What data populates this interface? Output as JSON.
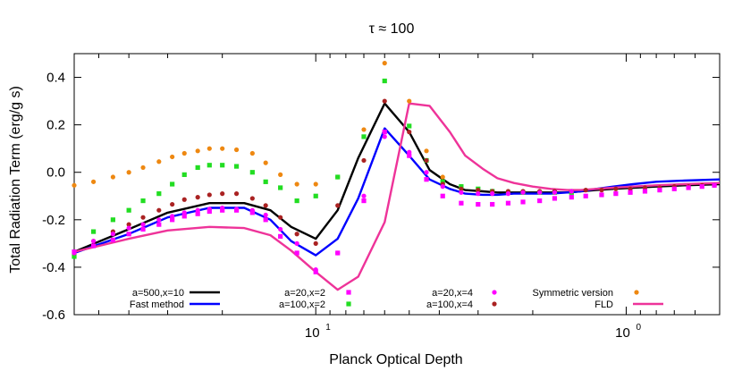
{
  "chart_data": {
    "type": "line",
    "title": "τ ≈ 100",
    "xlabel": "Planck Optical Depth",
    "ylabel": "Total Radiation Term (erg/g s)",
    "x_scale": "log",
    "x_direction": "decreasing",
    "xlim": [
      60,
      0.5
    ],
    "ylim": [
      -0.6,
      0.5
    ],
    "x_ticks": [
      {
        "value": 10,
        "label": "10",
        "sup": "1"
      },
      {
        "value": 1,
        "label": "10",
        "sup": "0"
      }
    ],
    "y_ticks": [
      {
        "value": 0.4,
        "label": "0.4"
      },
      {
        "value": 0.2,
        "label": "0.2"
      },
      {
        "value": 0.0,
        "label": "0.0"
      },
      {
        "value": -0.2,
        "label": "-0.2"
      },
      {
        "value": -0.4,
        "label": "-0.4"
      },
      {
        "value": -0.6,
        "label": "-0.6"
      }
    ],
    "grid": false,
    "series": [
      {
        "name": "a=500,x=10",
        "style": "line",
        "color": "#000000",
        "x": [
          60,
          40,
          30,
          22,
          17,
          14,
          12,
          10,
          8.5,
          7.3,
          6.0,
          5.0,
          4.3,
          3.7,
          3.3,
          2.9,
          2.6,
          2.3,
          2.0,
          1.75,
          1.55,
          1.4,
          1.25,
          1.1,
          0.95,
          0.8,
          0.65,
          0.5
        ],
        "y": [
          -0.335,
          -0.24,
          -0.17,
          -0.13,
          -0.13,
          -0.16,
          -0.23,
          -0.28,
          -0.16,
          0.06,
          0.29,
          0.17,
          0.01,
          -0.05,
          -0.075,
          -0.08,
          -0.085,
          -0.085,
          -0.085,
          -0.085,
          -0.085,
          -0.08,
          -0.075,
          -0.07,
          -0.065,
          -0.06,
          -0.055,
          -0.05
        ]
      },
      {
        "name": "Fast method",
        "style": "line",
        "color": "#0000ff",
        "x": [
          60,
          40,
          30,
          22,
          17,
          14,
          12,
          10,
          8.5,
          7.3,
          6.0,
          5.0,
          4.3,
          3.7,
          3.3,
          2.9,
          2.6,
          2.3,
          2.0,
          1.75,
          1.55,
          1.4,
          1.25,
          1.1,
          0.95,
          0.8,
          0.65,
          0.5
        ],
        "y": [
          -0.34,
          -0.26,
          -0.19,
          -0.15,
          -0.15,
          -0.2,
          -0.29,
          -0.35,
          -0.28,
          -0.11,
          0.185,
          0.07,
          -0.03,
          -0.07,
          -0.09,
          -0.095,
          -0.095,
          -0.09,
          -0.09,
          -0.09,
          -0.085,
          -0.08,
          -0.07,
          -0.06,
          -0.05,
          -0.04,
          -0.035,
          -0.03
        ]
      },
      {
        "name": "FLD",
        "style": "line",
        "color": "#ee3399",
        "x": [
          60,
          40,
          30,
          22,
          17,
          14,
          12,
          10,
          8.5,
          7.3,
          6.0,
          5.0,
          4.3,
          3.7,
          3.3,
          2.9,
          2.6,
          2.3,
          2.0,
          1.75,
          1.55,
          1.4,
          1.25,
          1.1,
          0.95,
          0.8,
          0.65,
          0.5
        ],
        "y": [
          -0.335,
          -0.28,
          -0.245,
          -0.23,
          -0.235,
          -0.265,
          -0.33,
          -0.42,
          -0.495,
          -0.44,
          -0.21,
          0.29,
          0.28,
          0.17,
          0.07,
          0.015,
          -0.025,
          -0.045,
          -0.06,
          -0.07,
          -0.075,
          -0.075,
          -0.07,
          -0.065,
          -0.06,
          -0.055,
          -0.05,
          -0.045
        ]
      },
      {
        "name": "a=20,x=2",
        "style": "dots",
        "color": "#ff00ff",
        "marker": "square",
        "x": [
          60,
          52,
          45,
          40,
          36,
          32,
          29,
          26.5,
          24,
          22,
          20,
          18,
          16,
          14.5,
          13,
          11.5,
          10,
          8.5,
          7,
          6,
          5,
          4.4,
          3.9,
          3.4,
          3.0,
          2.7,
          2.4,
          2.15,
          1.9,
          1.7,
          1.5,
          1.35,
          1.2,
          1.08,
          0.97,
          0.87,
          0.78,
          0.7,
          0.63,
          0.57,
          0.52
        ],
        "y": [
          -0.335,
          -0.31,
          -0.285,
          -0.26,
          -0.24,
          -0.22,
          -0.2,
          -0.185,
          -0.175,
          -0.165,
          -0.16,
          -0.16,
          -0.17,
          -0.2,
          -0.27,
          -0.34,
          -0.42,
          -0.34,
          -0.12,
          0.17,
          0.07,
          -0.03,
          -0.1,
          -0.13,
          -0.135,
          -0.135,
          -0.13,
          -0.125,
          -0.12,
          -0.11,
          -0.105,
          -0.1,
          -0.095,
          -0.09,
          -0.085,
          -0.08,
          -0.075,
          -0.07,
          -0.065,
          -0.06,
          -0.055
        ]
      },
      {
        "name": "a=100,x=2",
        "style": "dots",
        "color": "#22dd22",
        "marker": "square",
        "x": [
          60,
          52,
          45,
          40,
          36,
          32,
          29,
          26.5,
          24,
          22,
          20,
          18,
          16,
          14.5,
          13,
          11.5,
          10,
          8.5,
          7,
          6,
          5,
          4.4,
          3.9,
          3.4,
          3.0,
          2.7,
          2.4,
          2.15,
          1.9,
          1.7,
          1.5
        ],
        "y": [
          -0.355,
          -0.25,
          -0.2,
          -0.16,
          -0.12,
          -0.09,
          -0.05,
          -0.01,
          0.02,
          0.03,
          0.03,
          0.025,
          0.0,
          -0.04,
          -0.065,
          -0.12,
          -0.1,
          -0.02,
          0.15,
          0.385,
          0.195,
          0.05,
          -0.04,
          -0.06,
          -0.07,
          -0.08,
          -0.085,
          -0.085,
          -0.085,
          -0.085,
          -0.085
        ]
      },
      {
        "name": "a=20,x=4",
        "style": "dots",
        "color": "#ff00ff",
        "marker": "circle",
        "x": [
          60,
          52,
          45,
          40,
          36,
          32,
          29,
          26.5,
          24,
          22,
          20,
          18,
          16,
          14.5,
          13,
          11.5,
          10,
          8.5,
          7,
          6,
          5,
          4.4,
          3.9,
          3.4,
          3.0,
          2.7,
          2.4,
          2.15,
          1.9,
          1.7,
          1.5
        ],
        "y": [
          -0.34,
          -0.29,
          -0.26,
          -0.235,
          -0.22,
          -0.2,
          -0.185,
          -0.17,
          -0.16,
          -0.155,
          -0.15,
          -0.155,
          -0.16,
          -0.18,
          -0.24,
          -0.3,
          -0.41,
          -0.34,
          -0.1,
          0.15,
          0.085,
          0.0,
          -0.06,
          -0.085,
          -0.09,
          -0.09,
          -0.09,
          -0.085,
          -0.085,
          -0.085,
          -0.08
        ]
      },
      {
        "name": "a=100,x=4",
        "style": "dots",
        "color": "#aa2222",
        "marker": "circle",
        "x": [
          60,
          52,
          45,
          40,
          36,
          32,
          29,
          26.5,
          24,
          22,
          20,
          18,
          16,
          14.5,
          13,
          11.5,
          10,
          8.5,
          7,
          6,
          5,
          4.4,
          3.9,
          3.4,
          3.0,
          2.7,
          2.4,
          2.15,
          1.9,
          1.7,
          1.5,
          1.35,
          1.2,
          1.08,
          0.97,
          0.87,
          0.78,
          0.7,
          0.63,
          0.57,
          0.52
        ],
        "y": [
          -0.34,
          -0.29,
          -0.25,
          -0.22,
          -0.19,
          -0.16,
          -0.135,
          -0.115,
          -0.105,
          -0.095,
          -0.09,
          -0.09,
          -0.11,
          -0.14,
          -0.19,
          -0.26,
          -0.3,
          -0.14,
          0.05,
          0.3,
          0.17,
          0.05,
          -0.05,
          -0.07,
          -0.075,
          -0.08,
          -0.08,
          -0.08,
          -0.08,
          -0.08,
          -0.08,
          -0.075,
          -0.075,
          -0.07,
          -0.07,
          -0.065,
          -0.065,
          -0.06,
          -0.06,
          -0.055,
          -0.055
        ]
      },
      {
        "name": "Symmetric version",
        "style": "dots",
        "color": "#ee8811",
        "marker": "circle",
        "x": [
          60,
          52,
          45,
          40,
          36,
          32,
          29,
          26.5,
          24,
          22,
          20,
          18,
          16,
          14.5,
          13,
          11.5,
          10,
          8.5,
          7,
          6,
          5,
          4.4,
          3.9,
          3.4,
          3.0,
          2.7,
          2.4,
          2.15,
          1.9,
          1.7,
          1.5
        ],
        "y": [
          -0.055,
          -0.04,
          -0.02,
          0.0,
          0.02,
          0.045,
          0.065,
          0.08,
          0.09,
          0.1,
          0.1,
          0.095,
          0.08,
          0.04,
          -0.01,
          -0.05,
          -0.05,
          -0.02,
          0.18,
          0.46,
          0.3,
          0.09,
          -0.02,
          -0.06,
          -0.075,
          -0.08,
          -0.085,
          -0.085,
          -0.085,
          -0.085,
          -0.08
        ]
      }
    ],
    "legend": [
      {
        "label": "a=500,x=10",
        "series": "a=500,x=10"
      },
      {
        "label": "Fast method",
        "series": "Fast method"
      },
      {
        "label": "a=20,x=2",
        "series": "a=20,x=2"
      },
      {
        "label": "a=100,x=2",
        "series": "a=100,x=2"
      },
      {
        "label": "a=20,x=4",
        "series": "a=20,x=4"
      },
      {
        "label": "a=100,x=4",
        "series": "a=100,x=4"
      },
      {
        "label": "Symmetric version",
        "series": "Symmetric version"
      },
      {
        "label": "FLD",
        "series": "FLD"
      }
    ]
  }
}
